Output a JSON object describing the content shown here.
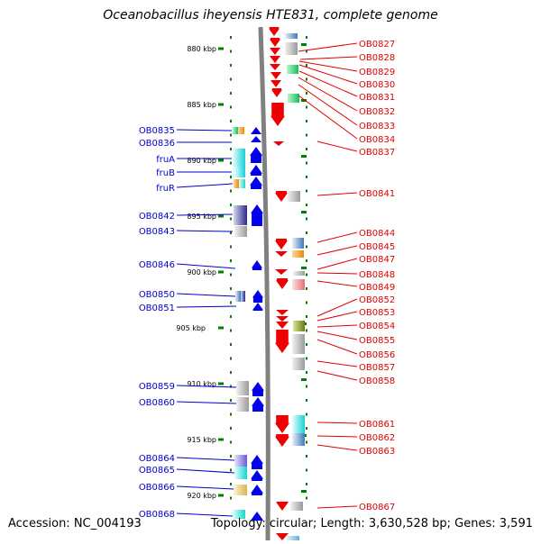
{
  "title": "Oceanobacillus iheyensis HTE831, complete genome",
  "footer": {
    "accession": "Accession: NC_004193",
    "topology": "Topology: circular; Length: 3,630,528 bp; Genes: 3,591"
  },
  "colors": {
    "left_label": "#0000cc",
    "right_label": "#e00000",
    "tick": "#008000",
    "forward_arrow": "#0000ee",
    "reverse_arrow": "#ee0000",
    "axis": "#808080"
  },
  "kbp_scale": {
    "labels": [
      "880 kbp",
      "885 kbp",
      "890 kbp",
      "895 kbp",
      "900 kbp",
      "905 kbp",
      "910 kbp",
      "915 kbp",
      "920 kbp"
    ]
  },
  "left_genes": [
    "OB0835",
    "OB0836",
    "fruA",
    "fruB",
    "fruR",
    "OB0842",
    "OB0843",
    "OB0846",
    "OB0850",
    "OB0851",
    "OB0859",
    "OB0860",
    "OB0864",
    "OB0865",
    "OB0866",
    "OB0868"
  ],
  "right_genes": [
    "OB0827",
    "OB0828",
    "OB0829",
    "OB0830",
    "OB0831",
    "OB0832",
    "OB0833",
    "OB0834",
    "OB0837",
    "OB0841",
    "OB0844",
    "OB0845",
    "OB0847",
    "OB0848",
    "OB0849",
    "OB0852",
    "OB0853",
    "OB0854",
    "OB0855",
    "OB0856",
    "OB0857",
    "OB0858",
    "OB0861",
    "OB0862",
    "OB0863",
    "OB0867"
  ]
}
